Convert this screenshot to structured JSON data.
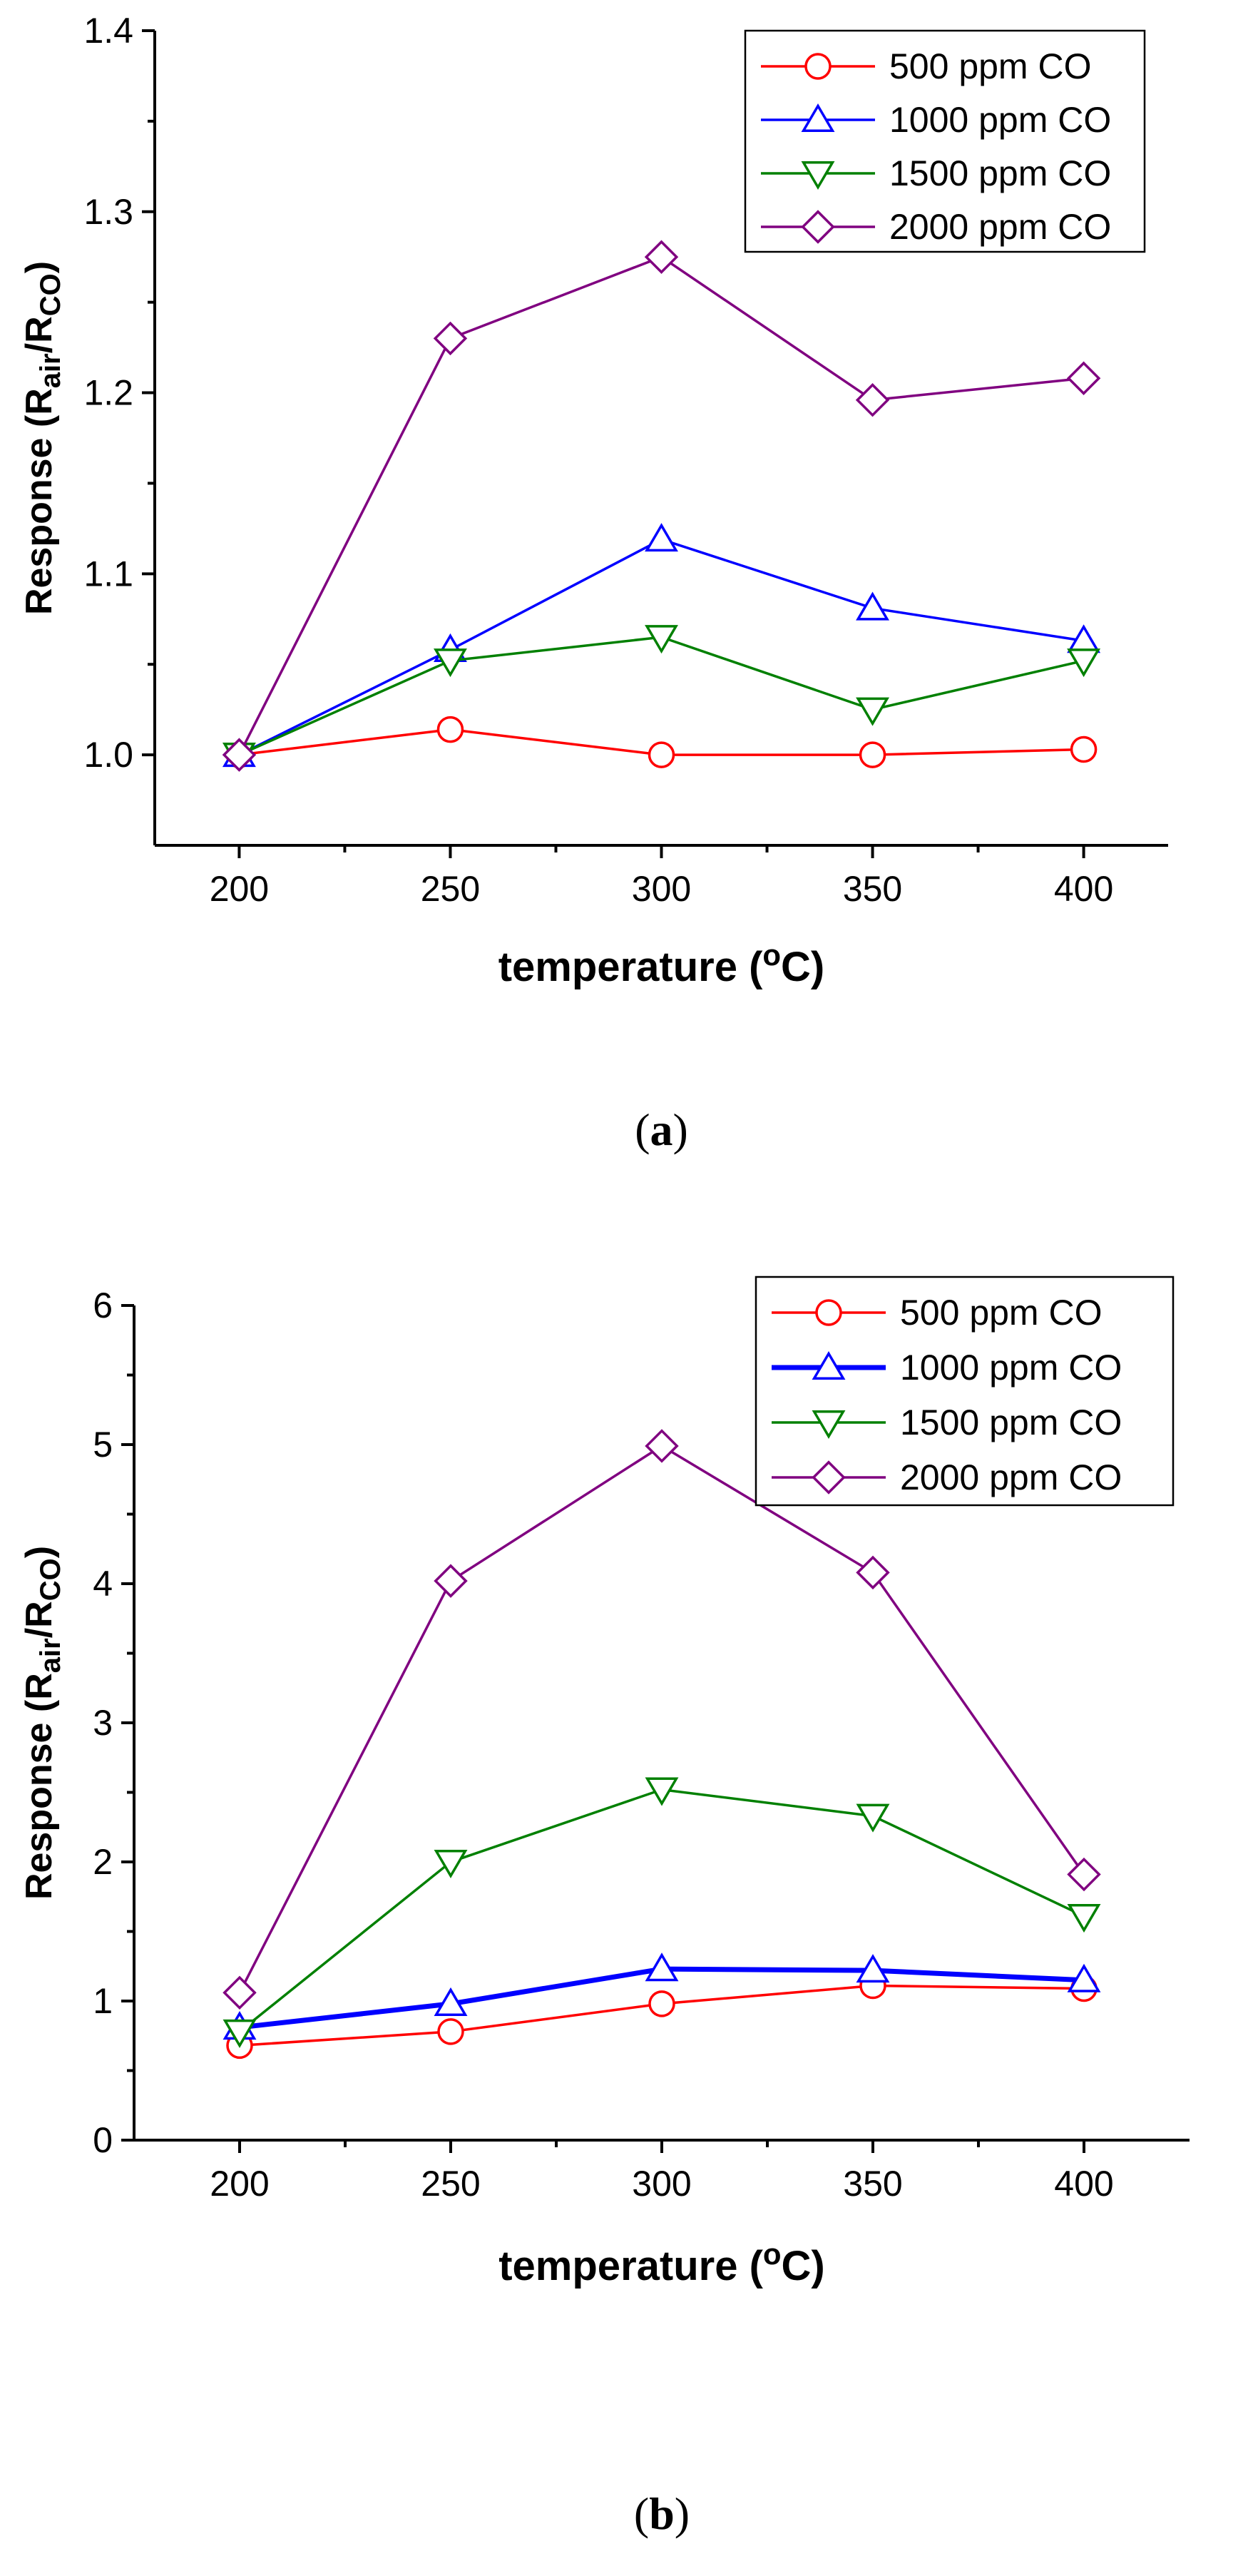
{
  "chart_data": [
    {
      "type": "line",
      "panel": "a",
      "caption": {
        "open": "(",
        "letter": "a",
        "close": ")"
      },
      "title": "",
      "xlabel": {
        "main": "temperature (",
        "sup": "o",
        "end": "C)"
      },
      "ylabel": {
        "main": "Response (R",
        "sub1": "air",
        "mid": "/R",
        "sub2": "CO",
        "end": ")"
      },
      "x": [
        200,
        250,
        300,
        350,
        400
      ],
      "xlim": [
        180,
        420
      ],
      "ylim": [
        0.95,
        1.4
      ],
      "xticks": [
        "200",
        "250",
        "300",
        "350",
        "400"
      ],
      "yticks": [
        "1.0",
        "1.1",
        "1.2",
        "1.3",
        "1.4"
      ],
      "legend_position": "top-right",
      "series": [
        {
          "name": "500 ppm CO",
          "color": "#ff0000",
          "marker": "circle",
          "values": [
            1.0,
            1.014,
            1.0,
            1.0,
            1.003
          ]
        },
        {
          "name": "1000 ppm CO",
          "color": "#0000ff",
          "marker": "triangle-up",
          "values": [
            1.0,
            1.058,
            1.119,
            1.081,
            1.063
          ]
        },
        {
          "name": "1500 ppm CO",
          "color": "#008000",
          "marker": "triangle-down",
          "values": [
            1.0,
            1.052,
            1.065,
            1.025,
            1.052
          ]
        },
        {
          "name": "2000 ppm CO",
          "color": "#800080",
          "marker": "diamond",
          "values": [
            1.0,
            1.23,
            1.275,
            1.196,
            1.208
          ]
        }
      ]
    },
    {
      "type": "line",
      "panel": "b",
      "caption": {
        "open": "(",
        "letter": "b",
        "close": ")"
      },
      "title": "",
      "xlabel": {
        "main": "temperature (",
        "sup": "o",
        "end": "C)"
      },
      "ylabel": {
        "main": "Response (R",
        "sub1": "air",
        "mid": "/R",
        "sub2": "CO",
        "end": ")"
      },
      "x": [
        200,
        250,
        300,
        350,
        400
      ],
      "xlim": [
        175,
        425
      ],
      "ylim": [
        0,
        6
      ],
      "xticks": [
        "200",
        "250",
        "300",
        "350",
        "400"
      ],
      "yticks": [
        "0",
        "1",
        "2",
        "3",
        "4",
        "5",
        "6"
      ],
      "legend_position": "top-right",
      "series": [
        {
          "name": "500 ppm CO",
          "color": "#ff0000",
          "marker": "circle",
          "values": [
            0.68,
            0.78,
            0.98,
            1.11,
            1.09
          ]
        },
        {
          "name": "1000 ppm CO",
          "color": "#0000ff",
          "marker": "triangle-up",
          "values": [
            0.81,
            0.98,
            1.23,
            1.22,
            1.15
          ]
        },
        {
          "name": "1500 ppm CO",
          "color": "#008000",
          "marker": "triangle-down",
          "values": [
            0.78,
            2.0,
            2.52,
            2.33,
            1.61
          ]
        },
        {
          "name": "2000 ppm CO",
          "color": "#800080",
          "marker": "diamond",
          "values": [
            1.06,
            4.02,
            4.99,
            4.08,
            1.91
          ]
        }
      ]
    }
  ]
}
